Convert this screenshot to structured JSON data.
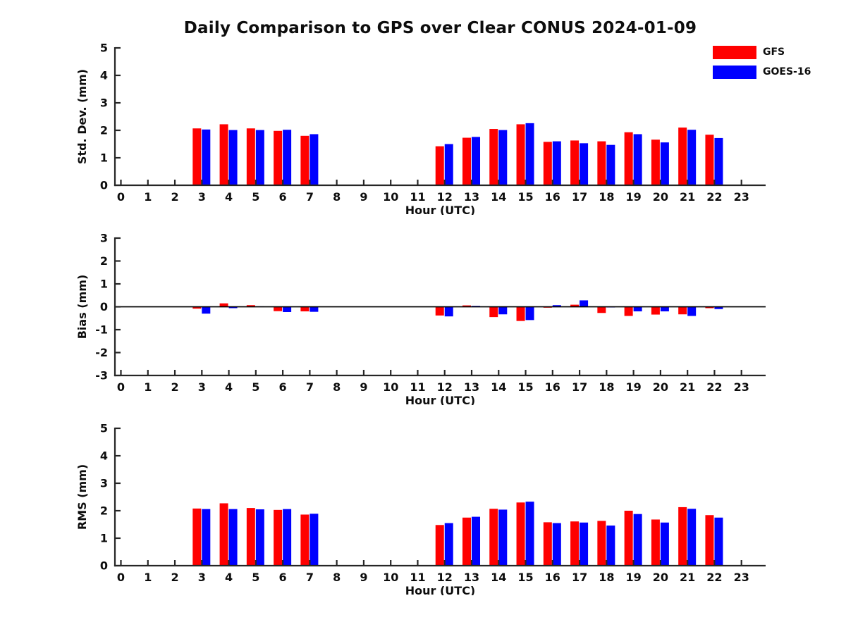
{
  "title": "Daily Comparison to GPS over Clear CONUS 2024-01-09",
  "legend": {
    "items": [
      {
        "label": "GFS",
        "color": "#ff0000"
      },
      {
        "label": "GOES-16",
        "color": "#0000ff"
      }
    ]
  },
  "axis_color": "#262626",
  "text_color": "#0d0d0d",
  "chart_data": [
    {
      "type": "bar",
      "title": "Daily Comparison to GPS over Clear CONUS 2024-01-09",
      "xlabel": "Hour (UTC)",
      "ylabel": "Std. Dev. (mm)",
      "ylim": [
        0,
        5
      ],
      "yticks": [
        0,
        1,
        2,
        3,
        4,
        5
      ],
      "zero_line": false,
      "grid": false,
      "legend_position": "upper-right-outside",
      "categories": [
        "0",
        "1",
        "2",
        "3",
        "4",
        "5",
        "6",
        "7",
        "8",
        "9",
        "10",
        "11",
        "12",
        "13",
        "14",
        "15",
        "16",
        "17",
        "18",
        "19",
        "20",
        "21",
        "22",
        "23"
      ],
      "series": [
        {
          "name": "GFS",
          "color": "#ff0000",
          "values": [
            null,
            null,
            null,
            2.07,
            2.22,
            2.07,
            1.98,
            1.8,
            null,
            null,
            null,
            null,
            1.42,
            1.73,
            2.05,
            2.22,
            1.58,
            1.63,
            1.6,
            1.93,
            1.66,
            2.1,
            1.84,
            null
          ]
        },
        {
          "name": "GOES-16",
          "color": "#0000ff",
          "values": [
            null,
            null,
            null,
            2.03,
            2.01,
            2.01,
            2.02,
            1.86,
            null,
            null,
            null,
            null,
            1.5,
            1.76,
            2.01,
            2.26,
            1.6,
            1.53,
            1.47,
            1.86,
            1.56,
            2.02,
            1.72,
            null
          ]
        }
      ]
    },
    {
      "type": "bar",
      "xlabel": "Hour (UTC)",
      "ylabel": "Bias (mm)",
      "ylim": [
        -3,
        3
      ],
      "yticks": [
        -3,
        -2,
        -1,
        0,
        1,
        2,
        3
      ],
      "zero_line": true,
      "grid": false,
      "categories": [
        "0",
        "1",
        "2",
        "3",
        "4",
        "5",
        "6",
        "7",
        "8",
        "9",
        "10",
        "11",
        "12",
        "13",
        "14",
        "15",
        "16",
        "17",
        "18",
        "19",
        "20",
        "21",
        "22",
        "23"
      ],
      "series": [
        {
          "name": "GFS",
          "color": "#ff0000",
          "values": [
            null,
            null,
            null,
            -0.08,
            0.15,
            0.07,
            -0.19,
            -0.2,
            null,
            null,
            null,
            null,
            -0.38,
            0.06,
            -0.45,
            -0.62,
            -0.04,
            0.09,
            -0.27,
            -0.4,
            -0.34,
            -0.33,
            -0.06,
            null
          ]
        },
        {
          "name": "GOES-16",
          "color": "#0000ff",
          "values": [
            null,
            null,
            null,
            -0.3,
            -0.06,
            0.02,
            -0.23,
            -0.22,
            null,
            null,
            null,
            null,
            -0.42,
            0.04,
            -0.33,
            -0.58,
            0.07,
            0.28,
            -0.03,
            -0.2,
            -0.2,
            -0.4,
            -0.1,
            null
          ]
        }
      ]
    },
    {
      "type": "bar",
      "xlabel": "Hour (UTC)",
      "ylabel": "RMS (mm)",
      "ylim": [
        0,
        5
      ],
      "yticks": [
        0,
        1,
        2,
        3,
        4,
        5
      ],
      "zero_line": false,
      "grid": false,
      "categories": [
        "0",
        "1",
        "2",
        "3",
        "4",
        "5",
        "6",
        "7",
        "8",
        "9",
        "10",
        "11",
        "12",
        "13",
        "14",
        "15",
        "16",
        "17",
        "18",
        "19",
        "20",
        "21",
        "22",
        "23"
      ],
      "series": [
        {
          "name": "GFS",
          "color": "#ff0000",
          "values": [
            null,
            null,
            null,
            2.08,
            2.27,
            2.1,
            2.03,
            1.86,
            null,
            null,
            null,
            null,
            1.48,
            1.75,
            2.07,
            2.3,
            1.58,
            1.61,
            1.63,
            2.0,
            1.68,
            2.13,
            1.84,
            null
          ]
        },
        {
          "name": "GOES-16",
          "color": "#0000ff",
          "values": [
            null,
            null,
            null,
            2.06,
            2.06,
            2.05,
            2.06,
            1.89,
            null,
            null,
            null,
            null,
            1.55,
            1.78,
            2.04,
            2.33,
            1.55,
            1.57,
            1.46,
            1.88,
            1.57,
            2.07,
            1.75,
            null
          ]
        }
      ]
    }
  ]
}
